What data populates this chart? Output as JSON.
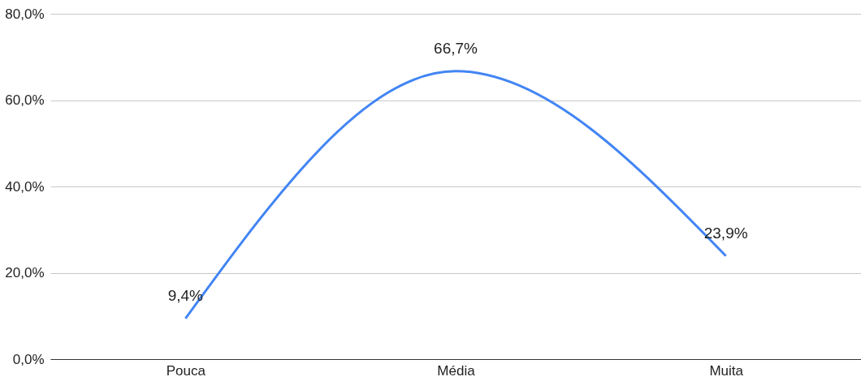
{
  "chart_data": {
    "type": "line",
    "categories": [
      "Pouca",
      "Média",
      "Muita"
    ],
    "series": [
      {
        "color": "#4285f4",
        "values": [
          9.4,
          66.7,
          23.9
        ],
        "value_labels": [
          "9,4%",
          "66,7%",
          "23,9%"
        ]
      }
    ],
    "ylim": [
      0,
      80
    ],
    "yticks": [
      {
        "value": 0,
        "label": "0,0%"
      },
      {
        "value": 20,
        "label": "20,0%"
      },
      {
        "value": 40,
        "label": "40,0%"
      },
      {
        "value": 60,
        "label": "60,0%"
      },
      {
        "value": 80,
        "label": "80,0%"
      }
    ],
    "grid": "y",
    "legend": false,
    "marker": "none",
    "line_style": "solid"
  }
}
